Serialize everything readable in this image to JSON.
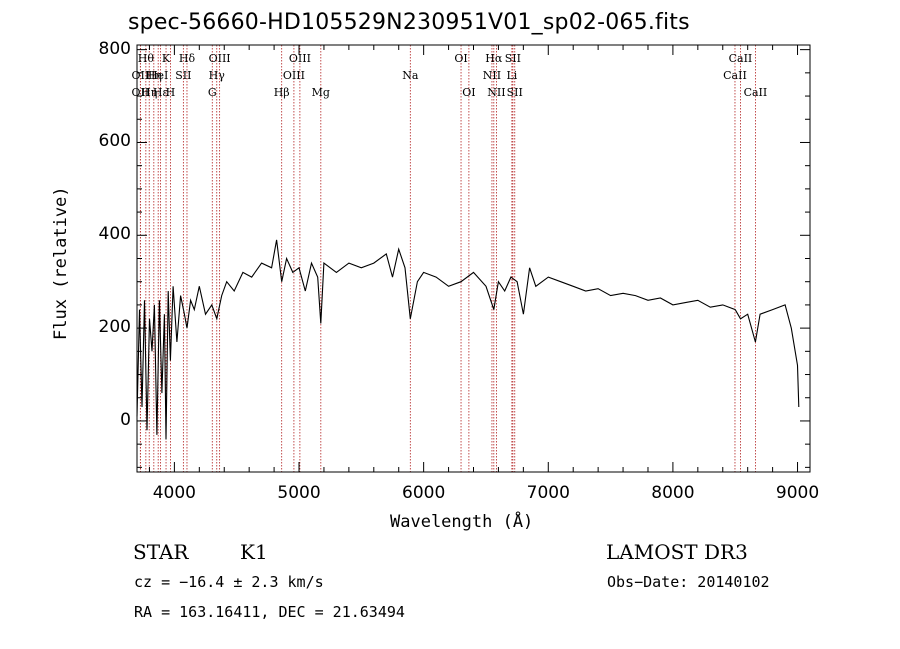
{
  "chart_data": {
    "type": "line",
    "title": "spec-56660-HD105529N230951V01_sp02-065.fits",
    "xlabel": "Wavelength (Å)",
    "ylabel": "Flux (relative)",
    "xlim": [
      3700,
      9100
    ],
    "ylim": [
      -110,
      810
    ],
    "xticks": [
      4000,
      5000,
      6000,
      7000,
      8000,
      9000
    ],
    "xtick_labels": [
      "4000",
      "5000",
      "6000",
      "7000",
      "8000",
      "9000"
    ],
    "yticks": [
      0,
      200,
      400,
      600,
      800
    ],
    "ytick_labels": [
      "0",
      "200",
      "400",
      "600",
      "800"
    ],
    "series": [
      {
        "name": "flux",
        "x": [
          3700,
          3720,
          3740,
          3760,
          3780,
          3800,
          3820,
          3840,
          3860,
          3880,
          3900,
          3920,
          3933,
          3950,
          3968,
          3990,
          4020,
          4050,
          4080,
          4101,
          4130,
          4160,
          4200,
          4250,
          4300,
          4340,
          4380,
          4420,
          4480,
          4550,
          4620,
          4700,
          4780,
          4820,
          4861,
          4900,
          4950,
          5000,
          5050,
          5100,
          5150,
          5175,
          5200,
          5300,
          5400,
          5500,
          5600,
          5700,
          5750,
          5800,
          5850,
          5893,
          5950,
          6000,
          6100,
          6200,
          6300,
          6400,
          6500,
          6563,
          6600,
          6650,
          6700,
          6750,
          6800,
          6850,
          6900,
          7000,
          7100,
          7200,
          7300,
          7400,
          7500,
          7600,
          7700,
          7800,
          7900,
          8000,
          8100,
          8200,
          8300,
          8400,
          8500,
          8542,
          8600,
          8662,
          8700,
          8800,
          8900,
          8950,
          9000,
          9010
        ],
        "y": [
          10,
          240,
          30,
          260,
          -20,
          220,
          150,
          250,
          -30,
          260,
          60,
          230,
          -40,
          280,
          130,
          290,
          170,
          270,
          230,
          200,
          260,
          240,
          290,
          230,
          250,
          220,
          270,
          300,
          280,
          320,
          310,
          340,
          330,
          390,
          300,
          350,
          320,
          330,
          280,
          340,
          310,
          210,
          340,
          320,
          340,
          330,
          340,
          360,
          310,
          370,
          330,
          220,
          300,
          320,
          310,
          290,
          300,
          320,
          290,
          240,
          300,
          280,
          310,
          300,
          230,
          330,
          290,
          310,
          300,
          290,
          280,
          285,
          270,
          275,
          270,
          260,
          265,
          250,
          255,
          260,
          245,
          250,
          240,
          220,
          230,
          170,
          230,
          240,
          250,
          200,
          120,
          30
        ]
      }
    ],
    "line_markers": [
      {
        "x": 3727,
        "label": "OII",
        "row": 2
      },
      {
        "x": 3727,
        "label": "OII",
        "row": 3
      },
      {
        "x": 3771,
        "label": "Hθ",
        "row": 1
      },
      {
        "x": 3798,
        "label": "Hη",
        "row": 3
      },
      {
        "x": 3835,
        "label": "Hη",
        "row": 2
      },
      {
        "x": 3870,
        "label": "HeI",
        "row": 2
      },
      {
        "x": 3889,
        "label": "Hε",
        "row": 3
      },
      {
        "x": 3933,
        "label": "K",
        "row": 1
      },
      {
        "x": 3968,
        "label": "H",
        "row": 3
      },
      {
        "x": 4072,
        "label": "SII",
        "row": 2
      },
      {
        "x": 4101,
        "label": "Hδ",
        "row": 1
      },
      {
        "x": 4304,
        "label": "G",
        "row": 3
      },
      {
        "x": 4340,
        "label": "Hγ",
        "row": 2
      },
      {
        "x": 4363,
        "label": "OIII",
        "row": 1
      },
      {
        "x": 4861,
        "label": "Hβ",
        "row": 3
      },
      {
        "x": 4959,
        "label": "OIII",
        "row": 2
      },
      {
        "x": 5007,
        "label": "OIII",
        "row": 1
      },
      {
        "x": 5175,
        "label": "Mg",
        "row": 3
      },
      {
        "x": 5893,
        "label": "Na",
        "row": 2
      },
      {
        "x": 6300,
        "label": "OI",
        "row": 1
      },
      {
        "x": 6363,
        "label": "OI",
        "row": 3
      },
      {
        "x": 6548,
        "label": "NII",
        "row": 2
      },
      {
        "x": 6563,
        "label": "Hα",
        "row": 1
      },
      {
        "x": 6584,
        "label": "NII",
        "row": 3
      },
      {
        "x": 6708,
        "label": "Li",
        "row": 2
      },
      {
        "x": 6716,
        "label": "SII",
        "row": 1
      },
      {
        "x": 6731,
        "label": "SII",
        "row": 3
      },
      {
        "x": 8498,
        "label": "CaII",
        "row": 2
      },
      {
        "x": 8542,
        "label": "CaII",
        "row": 1
      },
      {
        "x": 8662,
        "label": "CaII",
        "row": 3
      }
    ],
    "colors": {
      "spectrum": "#000000",
      "marker": "#b22222",
      "axes": "#000000"
    }
  },
  "info": {
    "obj_class": "STAR",
    "subclass": "K1",
    "survey": "LAMOST DR3",
    "cz": "cz = −16.4 ± 2.3 km/s",
    "obs_date": "Obs−Date: 20140102",
    "coords": "RA = 163.16411, DEC =  21.63494"
  }
}
